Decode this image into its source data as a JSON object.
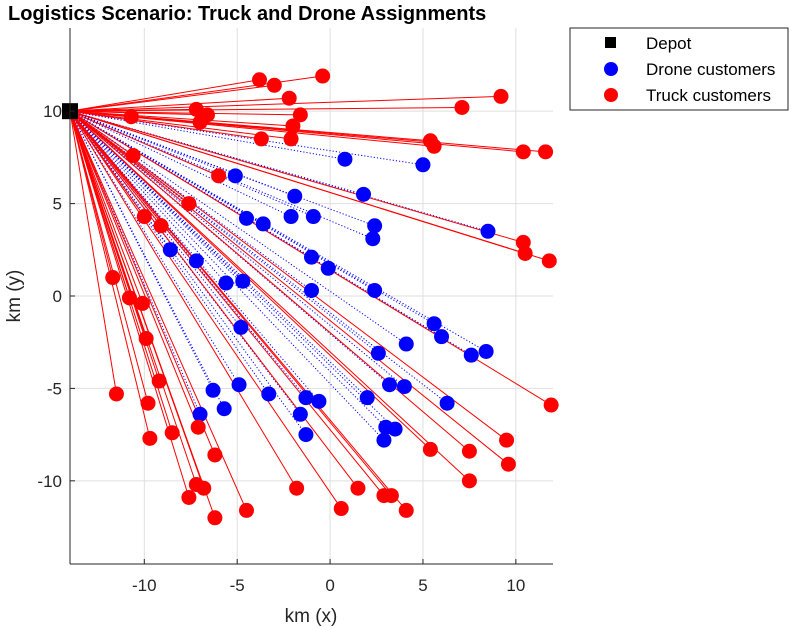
{
  "chart_data": {
    "type": "scatter",
    "title": "Logistics Scenario: Truck and Drone Assignments",
    "xlabel": "km (x)",
    "ylabel": "km (y)",
    "xlim": [
      -14,
      12
    ],
    "ylim": [
      -14.5,
      14.5
    ],
    "xticks": [
      -10,
      -5,
      0,
      5,
      10
    ],
    "yticks": [
      -10,
      -5,
      0,
      5,
      10
    ],
    "grid": true,
    "legend_position": "outside-top-right",
    "colors": {
      "depot": "#000000",
      "drone": "#0000ff",
      "truck": "#ff0000",
      "axis": "#262626",
      "grid": "#dfdfdf"
    },
    "depot": {
      "name": "Depot",
      "x": -14.0,
      "y": 10.0
    },
    "series": [
      {
        "name": "Drone customers",
        "color": "#0000ff",
        "link_style": "dotted",
        "points": [
          [
            0.8,
            7.4
          ],
          [
            5.0,
            7.1
          ],
          [
            -5.1,
            6.5
          ],
          [
            1.8,
            5.5
          ],
          [
            -1.9,
            5.4
          ],
          [
            -4.5,
            4.2
          ],
          [
            -3.6,
            3.9
          ],
          [
            -2.1,
            4.3
          ],
          [
            -0.9,
            4.3
          ],
          [
            2.4,
            3.8
          ],
          [
            2.3,
            3.1
          ],
          [
            -8.6,
            2.5
          ],
          [
            -7.2,
            1.9
          ],
          [
            -1.0,
            2.1
          ],
          [
            -0.1,
            1.5
          ],
          [
            -5.6,
            0.7
          ],
          [
            -4.7,
            0.8
          ],
          [
            -1.0,
            0.3
          ],
          [
            2.4,
            0.3
          ],
          [
            5.6,
            -1.5
          ],
          [
            -4.8,
            -1.7
          ],
          [
            6.0,
            -2.2
          ],
          [
            4.1,
            -2.6
          ],
          [
            2.6,
            -3.1
          ],
          [
            8.4,
            -3.0
          ],
          [
            7.6,
            -3.2
          ],
          [
            -6.3,
            -5.1
          ],
          [
            -4.9,
            -4.8
          ],
          [
            -3.3,
            -5.3
          ],
          [
            -1.3,
            -5.5
          ],
          [
            -0.6,
            -5.7
          ],
          [
            2.0,
            -5.5
          ],
          [
            3.2,
            -4.8
          ],
          [
            4.0,
            -4.9
          ],
          [
            -5.7,
            -6.1
          ],
          [
            -7.0,
            -6.4
          ],
          [
            -1.6,
            -6.4
          ],
          [
            6.3,
            -5.8
          ],
          [
            -1.3,
            -7.5
          ],
          [
            3.0,
            -7.1
          ],
          [
            3.5,
            -7.2
          ],
          [
            2.9,
            -7.8
          ],
          [
            8.5,
            3.5
          ]
        ]
      },
      {
        "name": "Truck customers",
        "color": "#ff0000",
        "link_style": "solid",
        "points": [
          [
            -3.8,
            11.7
          ],
          [
            -3.0,
            11.4
          ],
          [
            -0.4,
            11.9
          ],
          [
            -2.2,
            10.7
          ],
          [
            9.2,
            10.8
          ],
          [
            7.1,
            10.2
          ],
          [
            -7.2,
            10.1
          ],
          [
            -6.6,
            9.8
          ],
          [
            -7.0,
            9.4
          ],
          [
            -10.7,
            9.7
          ],
          [
            -2.0,
            9.2
          ],
          [
            -1.6,
            9.8
          ],
          [
            -3.7,
            8.5
          ],
          [
            -2.1,
            8.5
          ],
          [
            5.4,
            8.4
          ],
          [
            5.6,
            8.1
          ],
          [
            10.4,
            7.8
          ],
          [
            11.6,
            7.8
          ],
          [
            -10.6,
            7.6
          ],
          [
            -6.0,
            6.5
          ],
          [
            -7.6,
            5.0
          ],
          [
            -10.0,
            4.3
          ],
          [
            -9.1,
            3.8
          ],
          [
            10.4,
            2.9
          ],
          [
            10.5,
            2.3
          ],
          [
            11.8,
            1.9
          ],
          [
            -11.7,
            1.0
          ],
          [
            -10.8,
            -0.1
          ],
          [
            -10.1,
            -0.4
          ],
          [
            -9.9,
            -2.3
          ],
          [
            -9.2,
            -4.6
          ],
          [
            -11.5,
            -5.3
          ],
          [
            -9.8,
            -5.8
          ],
          [
            -8.5,
            -7.4
          ],
          [
            -9.7,
            -7.7
          ],
          [
            -7.1,
            -7.1
          ],
          [
            -6.2,
            -8.6
          ],
          [
            11.9,
            -5.9
          ],
          [
            9.5,
            -7.8
          ],
          [
            7.5,
            -8.4
          ],
          [
            5.4,
            -8.3
          ],
          [
            9.6,
            -9.1
          ],
          [
            -7.2,
            -10.2
          ],
          [
            -6.8,
            -10.4
          ],
          [
            -7.6,
            -10.9
          ],
          [
            -6.2,
            -12.0
          ],
          [
            -4.5,
            -11.6
          ],
          [
            -1.8,
            -10.4
          ],
          [
            0.6,
            -11.5
          ],
          [
            1.5,
            -10.4
          ],
          [
            2.9,
            -10.8
          ],
          [
            3.3,
            -10.8
          ],
          [
            4.1,
            -11.6
          ],
          [
            7.5,
            -10.0
          ]
        ]
      }
    ],
    "legend": [
      "Depot",
      "Drone customers",
      "Truck customers"
    ]
  }
}
